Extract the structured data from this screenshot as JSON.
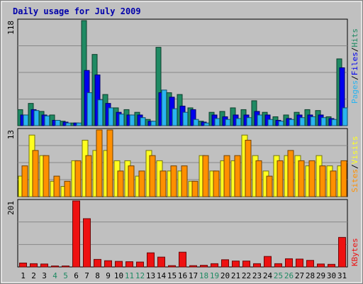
{
  "chart_data": {
    "type": "bar",
    "title": "Daily usage for July 2009",
    "days": [
      "1",
      "2",
      "3",
      "4",
      "5",
      "6",
      "7",
      "8",
      "9",
      "10",
      "11",
      "12",
      "13",
      "14",
      "15",
      "16",
      "17",
      "18",
      "19",
      "20",
      "21",
      "22",
      "23",
      "24",
      "25",
      "26",
      "27",
      "28",
      "29",
      "30",
      "31"
    ],
    "weekend_days": [
      "4",
      "5",
      "11",
      "12",
      "18",
      "19",
      "25",
      "26"
    ],
    "panels": [
      {
        "name": "hits-files-pages",
        "ymax": 118,
        "ymax_label": "118",
        "legend": [
          "Pages",
          "/",
          "Files",
          "/",
          "Hits"
        ],
        "series": [
          {
            "name": "Hits",
            "color": "#1f8a63",
            "values": [
              18,
              25,
              16,
              12,
              5,
              3,
              118,
              80,
              35,
              20,
              18,
              15,
              7,
              88,
              37,
              35,
              20,
              5,
              15,
              16,
              20,
              18,
              28,
              15,
              10,
              12,
              15,
              18,
              17,
              10,
              75
            ]
          },
          {
            "name": "Files",
            "color": "#0000ee",
            "values": [
              12,
              18,
              12,
              6,
              4,
              3,
              62,
              57,
              25,
              15,
              12,
              12,
              5,
              37,
              32,
              22,
              18,
              4,
              12,
              10,
              12,
              12,
              16,
              12,
              6,
              8,
              12,
              12,
              12,
              8,
              65
            ]
          },
          {
            "name": "Pages",
            "color": "#2ab4f0",
            "values": [
              12,
              17,
              11,
              6,
              3,
              3,
              37,
              29,
              20,
              13,
              12,
              9,
              5,
              40,
              19,
              15,
              7,
              3,
              8,
              7,
              8,
              9,
              12,
              7,
              5,
              7,
              9,
              10,
              9,
              7,
              20
            ]
          }
        ]
      },
      {
        "name": "visits-sites",
        "ymax": 13,
        "ymax_label": "13",
        "legend": [
          "Sites",
          "/",
          "Visits"
        ],
        "series": [
          {
            "name": "Visits",
            "color": "#ffff20",
            "values": [
              4,
              12,
              8,
              3,
              2,
              7,
              11,
              9,
              9,
              7,
              7,
              4,
              9,
              7,
              5,
              5,
              3,
              8,
              5,
              7,
              7,
              12,
              8,
              5,
              8,
              8,
              8,
              6,
              8,
              6,
              6
            ]
          },
          {
            "name": "Sites",
            "color": "#ff9000",
            "values": [
              6,
              9,
              8,
              4,
              3,
              7,
              8,
              13,
              13,
              5,
              6,
              5,
              8,
              5,
              6,
              6,
              3,
              8,
              5,
              8,
              8,
              11,
              7,
              4,
              7,
              9,
              7,
              7,
              6,
              5,
              7
            ]
          }
        ]
      },
      {
        "name": "kbytes",
        "ymax": 201,
        "ymax_label": "201",
        "legend": [
          "KBytes"
        ],
        "series": [
          {
            "name": "KBytes",
            "color": "#ee1111",
            "values": [
              12,
              10,
              9,
              3,
              3,
              201,
              147,
              23,
              19,
              17,
              16,
              15,
              43,
              30,
              4,
              45,
              4,
              5,
              10,
              22,
              18,
              18,
              10,
              32,
              10,
              25,
              24,
              20,
              9,
              8,
              90
            ]
          }
        ]
      }
    ]
  }
}
